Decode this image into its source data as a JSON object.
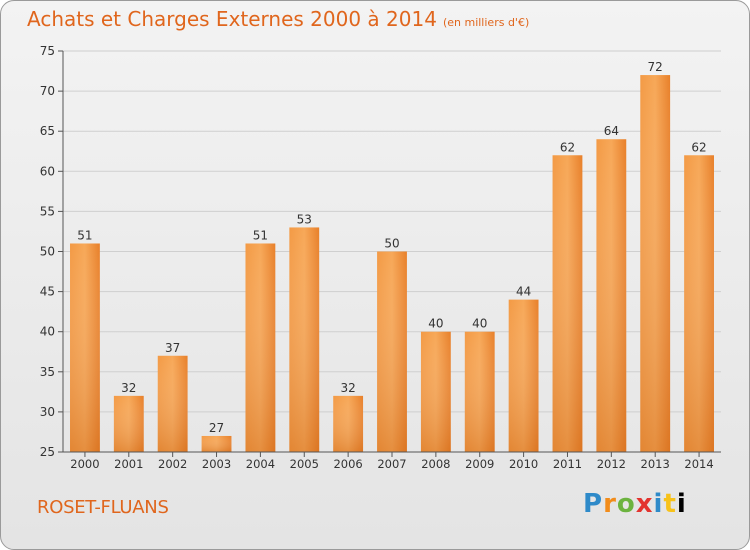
{
  "header": {
    "title": "Achats et Charges Externes 2000 à 2014",
    "subtitle": "(en milliers d'€)"
  },
  "footer": {
    "commune": "ROSET-FLUANS",
    "logo": "Proxiti"
  },
  "colors": {
    "accent": "#e0661d",
    "bar_light": "#f7a555",
    "bar_dark": "#d8741e"
  },
  "chart_data": {
    "type": "bar",
    "title": "Achats et Charges Externes 2000 à 2014",
    "subtitle": "(en milliers d'€)",
    "xlabel": "",
    "ylabel": "",
    "categories": [
      "2000",
      "2001",
      "2002",
      "2003",
      "2004",
      "2005",
      "2006",
      "2007",
      "2008",
      "2009",
      "2010",
      "2011",
      "2012",
      "2013",
      "2014"
    ],
    "values": [
      51,
      32,
      37,
      27,
      51,
      53,
      32,
      50,
      40,
      40,
      44,
      62,
      64,
      72,
      62
    ],
    "ylim": [
      25,
      75
    ],
    "yticks": [
      25,
      30,
      35,
      40,
      45,
      50,
      55,
      60,
      65,
      70,
      75
    ],
    "grid": true,
    "data_labels": true
  }
}
